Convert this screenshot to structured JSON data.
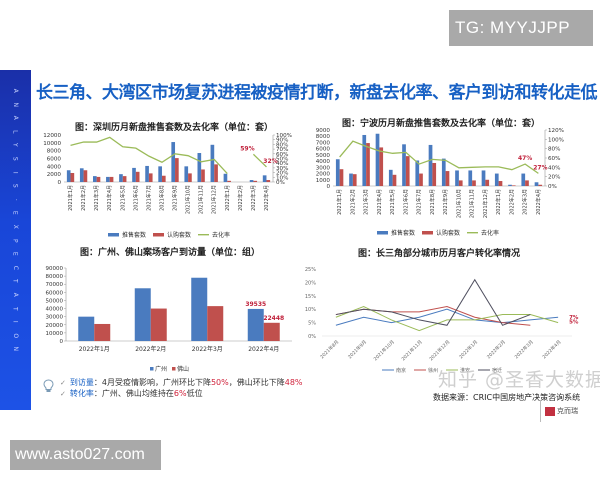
{
  "watermarks": {
    "top": "TG: MYYJJPP",
    "bottom": "www.asto027.com",
    "zhihu": "知乎 @圣香大数据"
  },
  "slide": {
    "title": "长三角、大湾区市场复苏进程被疫情打断，新盘去化率、客户到访和转化走低",
    "sidebar_letters": [
      "A",
      "N",
      "A",
      "L",
      "Y",
      "S",
      "I",
      "S",
      "·",
      "E",
      "X",
      "P",
      "E",
      "C",
      "T",
      "A",
      "T",
      "I",
      "O",
      "N"
    ],
    "notes": {
      "visits_label": "到访量",
      "visits_text_1": "：4月受疫情影响，广州环比下降",
      "visits_gz_pct": "50%",
      "visits_text_2": "，佛山环比下降",
      "visits_fs_pct": "48%",
      "conv_label": "转化率",
      "conv_text_1": "：广州、佛山均维持在",
      "conv_pct": "6%",
      "conv_text_2": "低位"
    },
    "source": "数据来源：CRIC中国房地产决策咨询系统",
    "brand": "克而瑞"
  },
  "colors": {
    "bar_blue": "#4a7bbf",
    "bar_red": "#c0504d",
    "line_green": "#9bbb59",
    "title_blue": "#1760c4",
    "label_red": "#c0203a",
    "nanjing": "#4a7bbf",
    "xuzhou": "#c0504d",
    "huaian": "#9bbb59",
    "suqian": "#4f4f5f"
  },
  "chart_data": [
    {
      "type": "bar",
      "title": "图：深圳历月新盘推售套数及去化率（单位：套）",
      "categories": [
        "2021年1月",
        "2021年2月",
        "2021年3月",
        "2021年4月",
        "2021年5月",
        "2021年6月",
        "2021年7月",
        "2021年8月",
        "2021年9月",
        "2021年10月",
        "2021年11月",
        "2021年12月",
        "2022年1月",
        "2022年2月",
        "2022年3月",
        "2022年4月"
      ],
      "series": [
        {
          "name": "推售套数",
          "type": "bar",
          "axis": "left",
          "values": [
            3000,
            3500,
            1500,
            1300,
            2000,
            3600,
            4100,
            4000,
            10200,
            4000,
            7400,
            9500,
            2100,
            0,
            500,
            1700
          ]
        },
        {
          "name": "认购套数",
          "type": "bar",
          "axis": "left",
          "values": [
            2300,
            3000,
            1300,
            1300,
            1500,
            2600,
            2200,
            1600,
            6100,
            2200,
            3200,
            4500,
            300,
            0,
            300,
            500
          ]
        },
        {
          "name": "去化率",
          "type": "line",
          "axis": "right",
          "values": [
            78,
            85,
            85,
            95,
            75,
            72,
            55,
            42,
            60,
            56,
            43,
            48,
            18,
            null,
            59,
            32
          ]
        }
      ],
      "ylim": [
        0,
        12000
      ],
      "yticks": [
        0,
        2000,
        4000,
        6000,
        8000,
        10000,
        12000
      ],
      "y2lim": [
        0,
        100
      ],
      "y2ticks": [
        "0%",
        "10%",
        "20%",
        "30%",
        "40%",
        "50%",
        "60%",
        "70%",
        "80%",
        "90%",
        "100%"
      ],
      "annotations": [
        {
          "label": "59%",
          "index": 14
        },
        {
          "label": "32%",
          "index": 15
        }
      ],
      "legend": [
        "推售套数",
        "认购套数",
        "去化率"
      ],
      "legend_position": "bottom"
    },
    {
      "type": "bar",
      "title": "图：宁波历月新盘推售套数及去化率（单位：套）",
      "categories": [
        "2021年1月",
        "2021年2月",
        "2021年3月",
        "2021年4月",
        "2021年5月",
        "2021年6月",
        "2021年7月",
        "2021年8月",
        "2021年9月",
        "2021年10月",
        "2021年11月",
        "2021年12月",
        "2022年1月",
        "2022年2月",
        "2022年3月",
        "2022年4月"
      ],
      "series": [
        {
          "name": "推售套数",
          "type": "bar",
          "axis": "left",
          "values": [
            4300,
            2000,
            8200,
            8400,
            2600,
            6700,
            4100,
            6600,
            4400,
            2500,
            2500,
            2500,
            2000,
            200,
            2000,
            600
          ]
        },
        {
          "name": "认购套数",
          "type": "bar",
          "axis": "left",
          "values": [
            2700,
            1900,
            6900,
            6200,
            1800,
            4800,
            2000,
            3700,
            2400,
            900,
            900,
            1000,
            800,
            100,
            900,
            200
          ]
        },
        {
          "name": "去化率",
          "type": "line",
          "axis": "right",
          "values": [
            62,
            96,
            85,
            75,
            70,
            72,
            47,
            57,
            55,
            39,
            40,
            41,
            41,
            35,
            47,
            27
          ]
        }
      ],
      "ylim": [
        0,
        9000
      ],
      "yticks": [
        0,
        1000,
        2000,
        3000,
        4000,
        5000,
        6000,
        7000,
        8000,
        9000
      ],
      "y2lim": [
        0,
        120
      ],
      "y2ticks": [
        "0%",
        "20%",
        "40%",
        "60%",
        "80%",
        "100%",
        "120%"
      ],
      "annotations": [
        {
          "label": "47%",
          "index": 14
        },
        {
          "label": "27%",
          "index": 15
        }
      ],
      "legend": [
        "推售套数",
        "认购套数",
        "去化率"
      ],
      "legend_position": "bottom"
    },
    {
      "type": "bar",
      "title": "图：广州、佛山案场客户到访量（单位：组）",
      "categories": [
        "2022年1月",
        "2022年2月",
        "2022年3月",
        "2022年4月"
      ],
      "series": [
        {
          "name": "广州",
          "values": [
            30000,
            65000,
            78000,
            39535
          ]
        },
        {
          "name": "佛山",
          "values": [
            21000,
            40000,
            43000,
            22448
          ]
        }
      ],
      "ylim": [
        0,
        90000
      ],
      "yticks": [
        0,
        10000,
        20000,
        30000,
        40000,
        50000,
        60000,
        70000,
        80000,
        90000
      ],
      "annotations": [
        {
          "label": "39535",
          "series": 0,
          "index": 3
        },
        {
          "label": "22448",
          "series": 1,
          "index": 3
        }
      ],
      "legend": [
        "广州",
        "佛山"
      ],
      "legend_position": "bottom"
    },
    {
      "type": "line",
      "title": "图：长三角部分城市历月客户转化率情况",
      "categories": [
        "2021年8月",
        "2021年9月",
        "2021年10月",
        "2021年11月",
        "2021年12月",
        "2022年1月",
        "2022年2月",
        "2022年3月",
        "2022年4月"
      ],
      "series": [
        {
          "name": "南京",
          "values": [
            4,
            7,
            5,
            7,
            10,
            6,
            5,
            6,
            7
          ]
        },
        {
          "name": "徐州",
          "values": [
            8,
            10,
            9,
            9,
            11,
            7,
            5,
            4,
            null
          ]
        },
        {
          "name": "淮安",
          "values": [
            7,
            11,
            6,
            2,
            6,
            6,
            8,
            8,
            5
          ]
        },
        {
          "name": "宿迁",
          "values": [
            8,
            10,
            9,
            6,
            4,
            21,
            4,
            8,
            null
          ]
        }
      ],
      "ylim": [
        0,
        25
      ],
      "yticks": [
        "0%",
        "5%",
        "10%",
        "15%",
        "20%",
        "25%"
      ],
      "annotations": [
        {
          "label": "7%"
        },
        {
          "label": "5%"
        }
      ],
      "legend": [
        "南京",
        "徐州",
        "淮安",
        "宿迁"
      ],
      "legend_position": "bottom",
      "grid": false
    }
  ]
}
